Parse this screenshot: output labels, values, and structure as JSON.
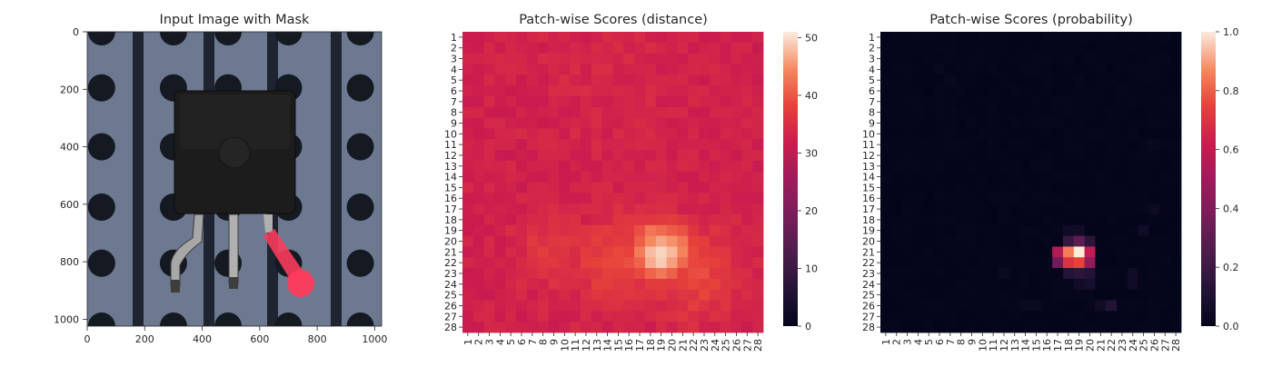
{
  "chart_data": [
    {
      "type": "image",
      "title": "Input Image with Mask",
      "xlim": [
        0,
        1024
      ],
      "ylim": [
        1024,
        0
      ],
      "xticks": [
        0,
        200,
        400,
        600,
        800,
        1000
      ],
      "yticks": [
        0,
        200,
        400,
        600,
        800,
        1000
      ],
      "content": "photo of a black transistor with three legs on a perforated blue-grey board; the right leg is highlighted by a red mask",
      "colors": {
        "board": "#6d7891",
        "strip": "#1e2430",
        "hole": "#141922",
        "component": "#1c1c1c",
        "mask": "#ff3b5c"
      }
    },
    {
      "type": "heatmap",
      "title": "Patch-wise Scores (distance)",
      "rows": 28,
      "cols": 28,
      "row_labels": [
        "1",
        "2",
        "3",
        "4",
        "5",
        "6",
        "7",
        "8",
        "9",
        "10",
        "11",
        "12",
        "13",
        "14",
        "15",
        "16",
        "17",
        "18",
        "19",
        "20",
        "21",
        "22",
        "23",
        "24",
        "25",
        "26",
        "27",
        "28"
      ],
      "col_labels": [
        "1",
        "2",
        "3",
        "4",
        "5",
        "6",
        "7",
        "8",
        "9",
        "10",
        "11",
        "12",
        "13",
        "14",
        "15",
        "16",
        "17",
        "18",
        "19",
        "20",
        "21",
        "22",
        "23",
        "24",
        "25",
        "26",
        "27",
        "28"
      ],
      "colorbar": {
        "min": 0,
        "max": 51,
        "ticks": [
          0,
          10,
          20,
          30,
          40,
          50
        ]
      },
      "colormap": "rocket",
      "background_range": [
        24,
        34
      ],
      "hotspots": [
        {
          "row": 21,
          "col": 19,
          "value": 51,
          "spread": 2.0
        },
        {
          "row": 22,
          "col": 15,
          "value": 40,
          "spread": 3.0
        },
        {
          "row": 23,
          "col": 22,
          "value": 40,
          "spread": 3.0
        },
        {
          "row": 21,
          "col": 9,
          "value": 38,
          "spread": 2.5
        },
        {
          "row": 5,
          "col": 14,
          "value": 35,
          "spread": 5.0
        }
      ]
    },
    {
      "type": "heatmap",
      "title": "Patch-wise Scores (probability)",
      "rows": 28,
      "cols": 28,
      "row_labels": [
        "1",
        "2",
        "3",
        "4",
        "5",
        "6",
        "7",
        "8",
        "9",
        "10",
        "11",
        "12",
        "13",
        "14",
        "15",
        "16",
        "17",
        "18",
        "19",
        "20",
        "21",
        "22",
        "23",
        "24",
        "25",
        "26",
        "27",
        "28"
      ],
      "col_labels": [
        "1",
        "2",
        "3",
        "4",
        "5",
        "6",
        "7",
        "8",
        "9",
        "10",
        "11",
        "12",
        "13",
        "14",
        "15",
        "16",
        "17",
        "18",
        "19",
        "20",
        "21",
        "22",
        "23",
        "24",
        "25",
        "26",
        "27",
        "28"
      ],
      "colorbar": {
        "min": 0.0,
        "max": 1.0,
        "ticks": [
          "0.0",
          "0.2",
          "0.4",
          "0.6",
          "0.8",
          "1.0"
        ]
      },
      "colormap": "rocket",
      "cells": [
        {
          "row": 20,
          "col": 18,
          "value": 0.18
        },
        {
          "row": 20,
          "col": 19,
          "value": 0.3
        },
        {
          "row": 20,
          "col": 20,
          "value": 0.15
        },
        {
          "row": 21,
          "col": 17,
          "value": 0.55
        },
        {
          "row": 21,
          "col": 18,
          "value": 0.85
        },
        {
          "row": 21,
          "col": 19,
          "value": 1.0
        },
        {
          "row": 21,
          "col": 20,
          "value": 0.6
        },
        {
          "row": 22,
          "col": 17,
          "value": 0.35
        },
        {
          "row": 22,
          "col": 18,
          "value": 0.7
        },
        {
          "row": 22,
          "col": 19,
          "value": 0.75
        },
        {
          "row": 22,
          "col": 20,
          "value": 0.45
        },
        {
          "row": 23,
          "col": 18,
          "value": 0.12
        },
        {
          "row": 23,
          "col": 19,
          "value": 0.15
        },
        {
          "row": 23,
          "col": 20,
          "value": 0.12
        },
        {
          "row": 19,
          "col": 19,
          "value": 0.06
        },
        {
          "row": 19,
          "col": 18,
          "value": 0.05
        },
        {
          "row": 24,
          "col": 19,
          "value": 0.06
        },
        {
          "row": 24,
          "col": 20,
          "value": 0.08
        },
        {
          "row": 26,
          "col": 22,
          "value": 0.12
        },
        {
          "row": 26,
          "col": 21,
          "value": 0.06
        },
        {
          "row": 23,
          "col": 24,
          "value": 0.05
        },
        {
          "row": 24,
          "col": 24,
          "value": 0.05
        },
        {
          "row": 19,
          "col": 25,
          "value": 0.05
        },
        {
          "row": 17,
          "col": 26,
          "value": 0.04
        },
        {
          "row": 11,
          "col": 26,
          "value": 0.03
        },
        {
          "row": 23,
          "col": 12,
          "value": 0.03
        },
        {
          "row": 26,
          "col": 14,
          "value": 0.03
        },
        {
          "row": 26,
          "col": 15,
          "value": 0.03
        },
        {
          "row": 5,
          "col": 7,
          "value": 0.02
        },
        {
          "row": 4,
          "col": 6,
          "value": 0.02
        }
      ]
    }
  ]
}
